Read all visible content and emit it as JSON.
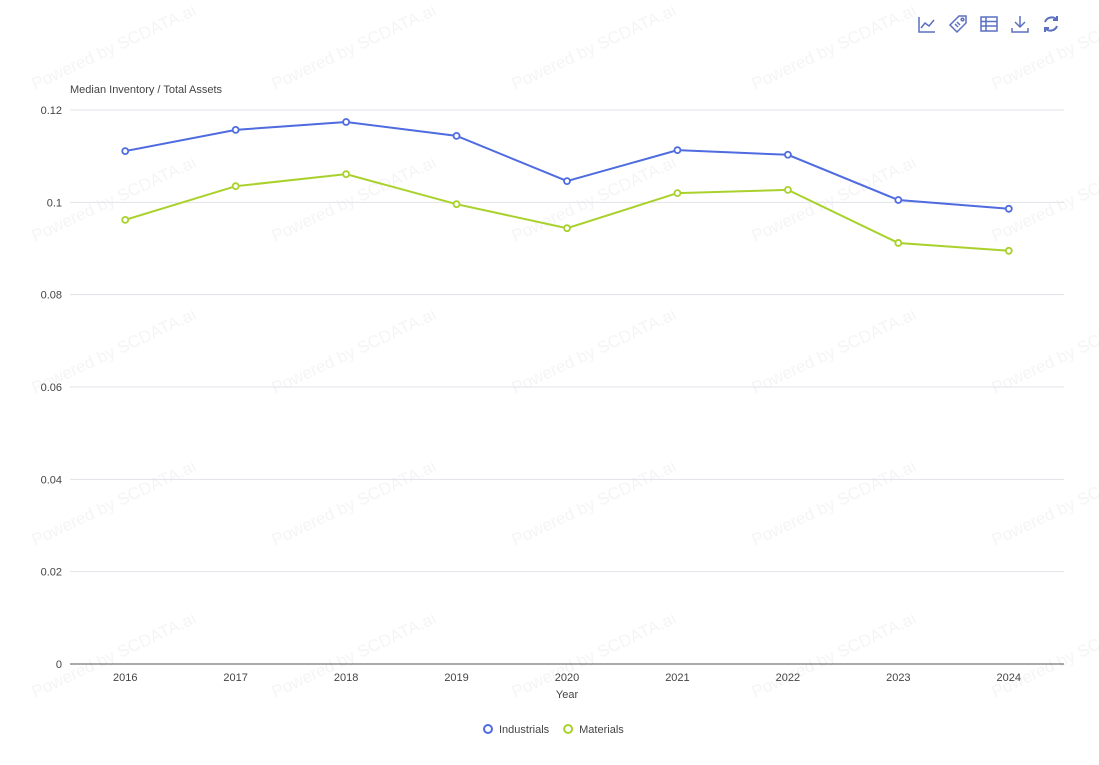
{
  "toolbar": {
    "icons": [
      "line-chart-icon",
      "tag-icon",
      "data-view-icon",
      "download-icon",
      "refresh-icon"
    ]
  },
  "watermark": "Powered by SCDATA.ai",
  "chart_data": {
    "type": "line",
    "title": "",
    "ylabel": "Median Inventory / Total Assets",
    "xlabel": "Year",
    "categories": [
      "2016",
      "2017",
      "2018",
      "2019",
      "2020",
      "2021",
      "2022",
      "2023",
      "2024"
    ],
    "ylim": [
      0,
      0.12
    ],
    "yticks": [
      "0",
      "0.02",
      "0.04",
      "0.06",
      "0.08",
      "0.1",
      "0.12"
    ],
    "grid": true,
    "legend_position": "bottom-center",
    "series": [
      {
        "name": "Industrials",
        "color": "#4F6BE0",
        "values": [
          0.1111,
          0.1157,
          0.1174,
          0.1144,
          0.1046,
          0.1113,
          0.1103,
          0.1005,
          0.0986
        ]
      },
      {
        "name": "Materials",
        "color": "#A9D12B",
        "values": [
          0.0962,
          0.1035,
          0.1061,
          0.0996,
          0.0944,
          0.102,
          0.1027,
          0.0912,
          0.0895
        ]
      }
    ]
  }
}
